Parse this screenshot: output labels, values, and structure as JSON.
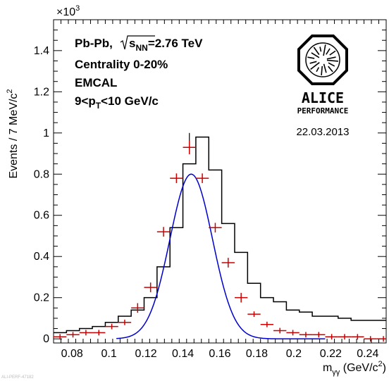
{
  "chart_data": {
    "type": "histogram",
    "xlim": [
      0.07,
      0.25
    ],
    "ylim": [
      -0.02,
      1.55
    ],
    "y_multiplier_label": "×10",
    "y_multiplier_exp": "3",
    "x_ticks": [
      {
        "v": 0.08,
        "label": "0.08"
      },
      {
        "v": 0.1,
        "label": "0.1"
      },
      {
        "v": 0.12,
        "label": "0.12"
      },
      {
        "v": 0.14,
        "label": "0.14"
      },
      {
        "v": 0.16,
        "label": "0.16"
      },
      {
        "v": 0.18,
        "label": "0.18"
      },
      {
        "v": 0.2,
        "label": "0.2"
      },
      {
        "v": 0.22,
        "label": "0.22"
      },
      {
        "v": 0.24,
        "label": "0.24"
      }
    ],
    "y_ticks": [
      {
        "v": 0,
        "label": "0"
      },
      {
        "v": 0.2,
        "label": "0.2"
      },
      {
        "v": 0.4,
        "label": "0.4"
      },
      {
        "v": 0.6,
        "label": "0.6"
      },
      {
        "v": 0.8,
        "label": "0.8"
      },
      {
        "v": 1.0,
        "label": "1"
      },
      {
        "v": 1.2,
        "label": "1.2"
      },
      {
        "v": 1.4,
        "label": "1.4"
      }
    ],
    "xlabel": "m",
    "xlabel_sub": "γγ",
    "xlabel_unit": "(GeV/c",
    "xlabel_unit_sup": "2",
    "xlabel_unit_close": ")",
    "ylabel": "Events / 7 MeV/c",
    "ylabel_sup": "2",
    "bin_width": 0.007,
    "histogram": {
      "color": "#000000",
      "bin_lows": [
        0.063,
        0.07,
        0.077,
        0.084,
        0.091,
        0.098,
        0.105,
        0.112,
        0.119,
        0.126,
        0.133,
        0.14,
        0.147,
        0.154,
        0.161,
        0.168,
        0.175,
        0.182,
        0.189,
        0.196,
        0.203,
        0.21,
        0.217,
        0.224,
        0.231,
        0.238,
        0.245
      ],
      "values": [
        0.03,
        0.03,
        0.04,
        0.05,
        0.06,
        0.08,
        0.11,
        0.14,
        0.2,
        0.35,
        0.54,
        0.85,
        0.98,
        0.82,
        0.56,
        0.42,
        0.27,
        0.2,
        0.18,
        0.14,
        0.13,
        0.11,
        0.11,
        0.1,
        0.09,
        0.09,
        0.09
      ]
    },
    "subtracted_points": {
      "color": "#cc0000",
      "x": [
        0.0735,
        0.0805,
        0.0875,
        0.0945,
        0.1015,
        0.1085,
        0.1155,
        0.1225,
        0.1295,
        0.1365,
        0.1435,
        0.1505,
        0.1575,
        0.1645,
        0.1715,
        0.1785,
        0.1855,
        0.1925,
        0.1995,
        0.2065,
        0.2135,
        0.2205,
        0.2275,
        0.2345,
        0.2415,
        0.2485
      ],
      "y": [
        0.01,
        0.02,
        0.03,
        0.03,
        0.06,
        0.08,
        0.15,
        0.25,
        0.52,
        0.78,
        0.93,
        0.78,
        0.54,
        0.37,
        0.2,
        0.12,
        0.07,
        0.04,
        0.03,
        0.02,
        0.02,
        0.01,
        0.01,
        0.01,
        0.0,
        0.0
      ],
      "err": [
        0.01,
        0.01,
        0.01,
        0.01,
        0.01,
        0.01,
        0.02,
        0.02,
        0.02,
        0.02,
        0.03,
        0.02,
        0.02,
        0.02,
        0.02,
        0.01,
        0.01,
        0.01,
        0.01,
        0.01,
        0.01,
        0.01,
        0.01,
        0.01,
        0.01,
        0.01
      ]
    },
    "fit": {
      "color": "#0000cc",
      "function": "gaussian",
      "amplitude": 0.8,
      "mean": 0.1445,
      "sigma": 0.0115,
      "x_range": [
        0.104,
        0.217
      ]
    }
  },
  "info": {
    "collision": "Pb-Pb,",
    "sqrt_s": "s",
    "sqrt_s_sub": "NN",
    "energy": "=2.76 TeV",
    "centrality": "Centrality 0-20%",
    "detector": "EMCAL",
    "pt_range_a": "9<p",
    "pt_range_sub": "T",
    "pt_range_b": "<10 GeV/c"
  },
  "logo": {
    "name": "ALICE",
    "tagline": "PERFORMANCE"
  },
  "date": "22.03.2013",
  "footer": "ALI-PERF-47182"
}
